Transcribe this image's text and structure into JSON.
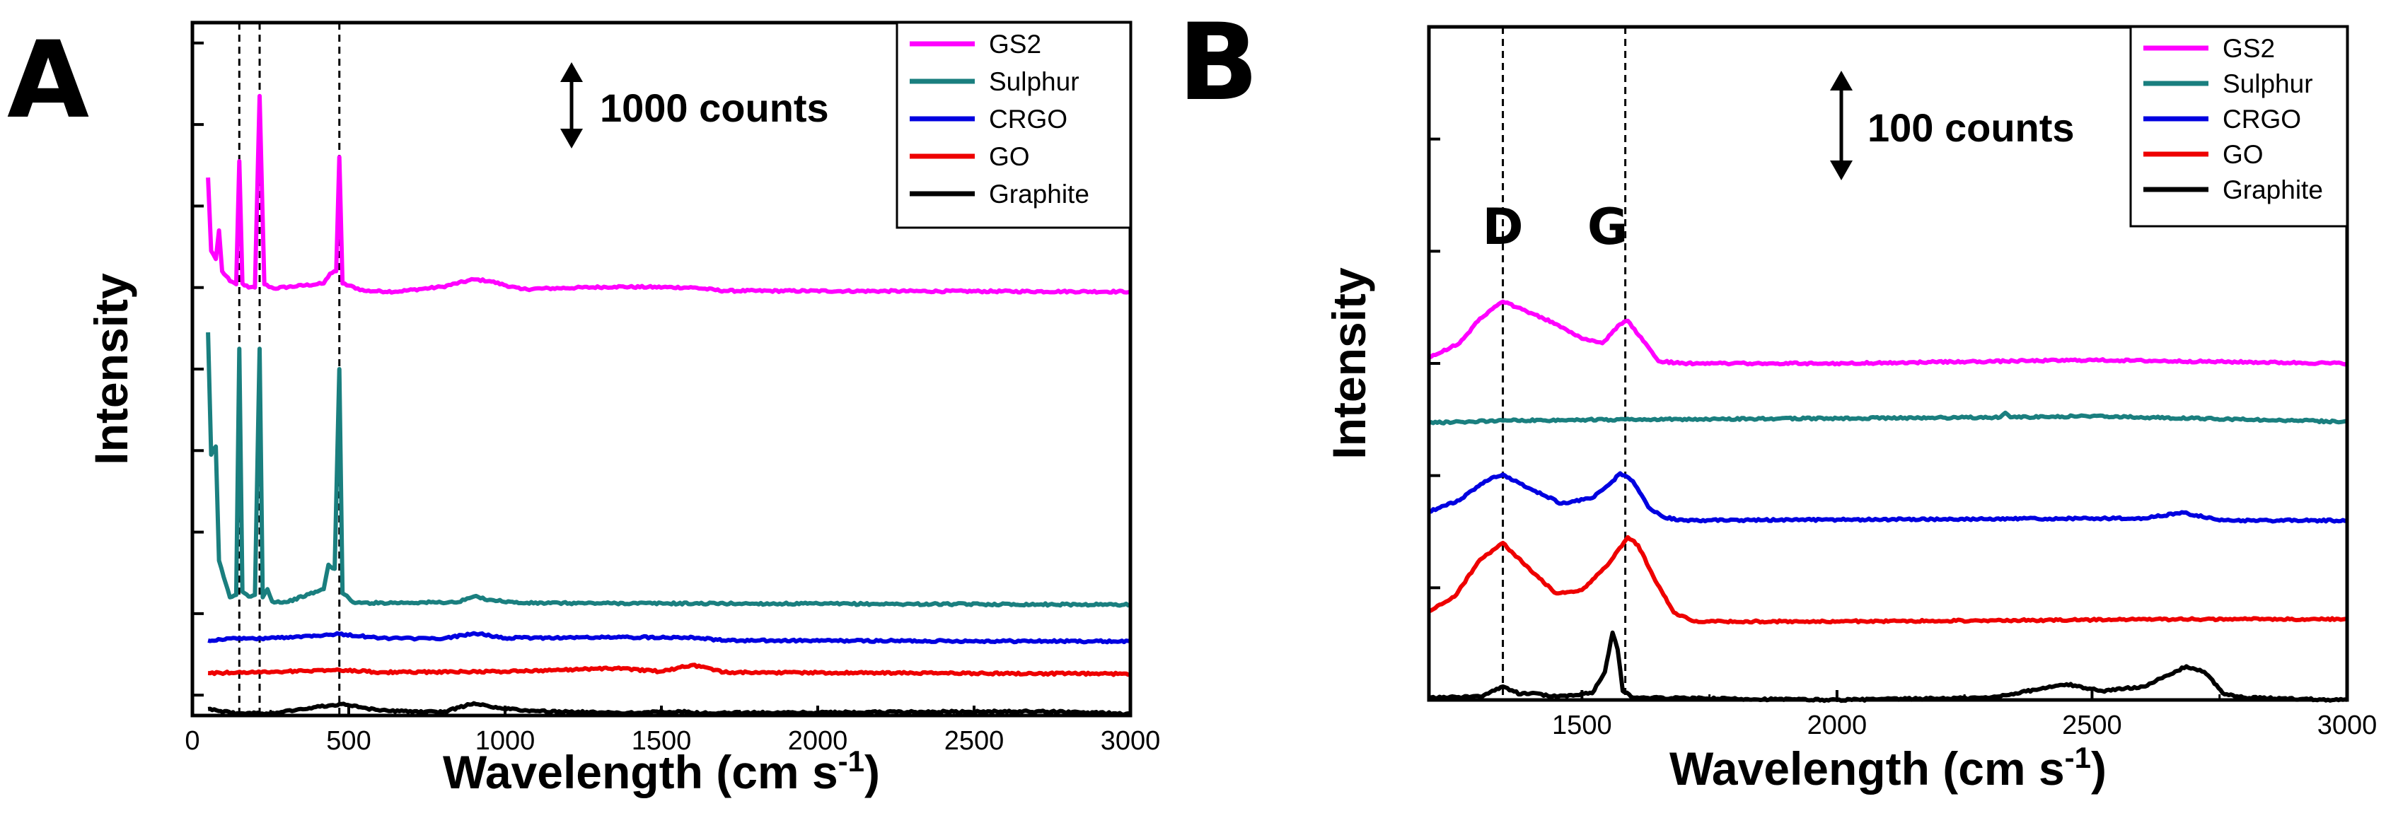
{
  "colors": {
    "GS2": "#ff00ff",
    "Sulphur": "#1a7f7f",
    "CRGO": "#0000e0",
    "GO": "#ee0000",
    "Graphite": "#000000"
  },
  "chart_data": [
    {
      "type": "line",
      "panel_label": "A",
      "xlabel": "Wavelength (cm s",
      "xlabel_sup": "-1",
      "xlabel_close": ")",
      "ylabel": "Intensity",
      "xlim": [
        0,
        3000
      ],
      "x_ticks": [
        0,
        500,
        1000,
        1500,
        2000,
        2500,
        3000
      ],
      "y_units": "counts",
      "ylim": [
        0,
        8500
      ],
      "y_minor_ticks": [
        250,
        1250,
        2250,
        3250,
        4250,
        5250,
        6250,
        7250,
        8250
      ],
      "scale_bar": {
        "text": "1000 counts",
        "value": 1000
      },
      "reference_lines_x": [
        150,
        215,
        470
      ],
      "legend": [
        "GS2",
        "Sulphur",
        "CRGO",
        "GO",
        "Graphite"
      ],
      "series": [
        {
          "name": "GS2",
          "baseline": 5200,
          "points": [
            [
              50,
              6600
            ],
            [
              60,
              5700
            ],
            [
              75,
              5600
            ],
            [
              85,
              5950
            ],
            [
              95,
              5450
            ],
            [
              120,
              5330
            ],
            [
              140,
              5290
            ],
            [
              150,
              6800
            ],
            [
              160,
              5300
            ],
            [
              180,
              5250
            ],
            [
              200,
              5250
            ],
            [
              215,
              7600
            ],
            [
              230,
              5290
            ],
            [
              260,
              5240
            ],
            [
              420,
              5300
            ],
            [
              440,
              5420
            ],
            [
              460,
              5450
            ],
            [
              470,
              6850
            ],
            [
              480,
              5300
            ],
            [
              550,
              5210
            ],
            [
              650,
              5200
            ],
            [
              800,
              5260
            ],
            [
              900,
              5350
            ],
            [
              950,
              5330
            ],
            [
              1050,
              5230
            ],
            [
              1350,
              5260
            ],
            [
              1600,
              5250
            ],
            [
              1700,
              5210
            ],
            [
              3000,
              5200
            ]
          ]
        },
        {
          "name": "Sulphur",
          "baseline": 1350,
          "points": [
            [
              50,
              4700
            ],
            [
              60,
              3200
            ],
            [
              75,
              3300
            ],
            [
              85,
              1900
            ],
            [
              100,
              1700
            ],
            [
              120,
              1450
            ],
            [
              140,
              1480
            ],
            [
              150,
              4500
            ],
            [
              160,
              1520
            ],
            [
              180,
              1460
            ],
            [
              200,
              1480
            ],
            [
              215,
              4500
            ],
            [
              225,
              1450
            ],
            [
              240,
              1550
            ],
            [
              255,
              1400
            ],
            [
              300,
              1390
            ],
            [
              420,
              1550
            ],
            [
              435,
              1850
            ],
            [
              455,
              1800
            ],
            [
              470,
              4250
            ],
            [
              480,
              1500
            ],
            [
              520,
              1380
            ],
            [
              850,
              1390
            ],
            [
              900,
              1460
            ],
            [
              950,
              1420
            ],
            [
              1050,
              1380
            ],
            [
              3000,
              1360
            ]
          ]
        },
        {
          "name": "CRGO",
          "baseline": 900,
          "points": [
            [
              50,
              920
            ],
            [
              150,
              950
            ],
            [
              200,
              940
            ],
            [
              300,
              960
            ],
            [
              470,
              1000
            ],
            [
              600,
              950
            ],
            [
              800,
              940
            ],
            [
              900,
              1010
            ],
            [
              1000,
              950
            ],
            [
              1350,
              960
            ],
            [
              1600,
              960
            ],
            [
              1700,
              920
            ],
            [
              3000,
              910
            ]
          ]
        },
        {
          "name": "GO",
          "baseline": 500,
          "points": [
            [
              50,
              520
            ],
            [
              300,
              540
            ],
            [
              470,
              560
            ],
            [
              600,
              530
            ],
            [
              1000,
              540
            ],
            [
              1350,
              580
            ],
            [
              1500,
              540
            ],
            [
              1600,
              620
            ],
            [
              1700,
              530
            ],
            [
              3000,
              510
            ]
          ]
        },
        {
          "name": "Graphite",
          "baseline": 20,
          "points": [
            [
              50,
              80
            ],
            [
              150,
              20
            ],
            [
              250,
              30
            ],
            [
              470,
              140
            ],
            [
              600,
              60
            ],
            [
              800,
              40
            ],
            [
              900,
              150
            ],
            [
              950,
              110
            ],
            [
              1050,
              60
            ],
            [
              1350,
              30
            ],
            [
              1560,
              50
            ],
            [
              1600,
              30
            ],
            [
              2700,
              50
            ],
            [
              3000,
              20
            ]
          ]
        }
      ]
    },
    {
      "type": "line",
      "panel_label": "B",
      "xlabel": "Wavelength (cm s",
      "xlabel_sup": "-1",
      "xlabel_close": ")",
      "ylabel": "Intensity",
      "xlim": [
        1200,
        3000
      ],
      "x_ticks": [
        1500,
        2000,
        2500,
        3000
      ],
      "y_units": "counts",
      "ylim": [
        0,
        600
      ],
      "y_minor_ticks": [
        0,
        100,
        200,
        300,
        400,
        500,
        600
      ],
      "scale_bar": {
        "text": "100 counts",
        "value": 100
      },
      "reference_lines_x": [
        1345,
        1585
      ],
      "peak_labels": [
        {
          "text": "D",
          "x": 1345
        },
        {
          "text": "G",
          "x": 1585
        }
      ],
      "legend": [
        "GS2",
        "Sulphur",
        "CRGO",
        "GO",
        "Graphite"
      ],
      "series": [
        {
          "name": "GS2",
          "baseline": 300,
          "points": [
            [
              1200,
              305
            ],
            [
              1260,
              318
            ],
            [
              1300,
              340
            ],
            [
              1345,
              355
            ],
            [
              1400,
              345
            ],
            [
              1450,
              335
            ],
            [
              1500,
              322
            ],
            [
              1540,
              318
            ],
            [
              1575,
              335
            ],
            [
              1590,
              338
            ],
            [
              1620,
              320
            ],
            [
              1650,
              302
            ],
            [
              1700,
              300
            ],
            [
              2000,
              300
            ],
            [
              2500,
              303
            ],
            [
              3000,
              300
            ]
          ]
        },
        {
          "name": "Sulphur",
          "baseline": 247,
          "points": [
            [
              1200,
              247
            ],
            [
              1345,
              249
            ],
            [
              1585,
              250
            ],
            [
              2000,
              251
            ],
            [
              2320,
              252
            ],
            [
              2330,
              256
            ],
            [
              2340,
              252
            ],
            [
              2500,
              253
            ],
            [
              2700,
              251
            ],
            [
              3000,
              248
            ]
          ]
        },
        {
          "name": "CRGO",
          "baseline": 160,
          "points": [
            [
              1200,
              168
            ],
            [
              1260,
              178
            ],
            [
              1310,
              195
            ],
            [
              1345,
              201
            ],
            [
              1400,
              188
            ],
            [
              1460,
              175
            ],
            [
              1520,
              180
            ],
            [
              1560,
              195
            ],
            [
              1575,
              202
            ],
            [
              1600,
              195
            ],
            [
              1630,
              172
            ],
            [
              1660,
              163
            ],
            [
              1700,
              160
            ],
            [
              2600,
              162
            ],
            [
              2680,
              167
            ],
            [
              2750,
              160
            ],
            [
              3000,
              160
            ]
          ]
        },
        {
          "name": "GO",
          "baseline": 70,
          "points": [
            [
              1200,
              79
            ],
            [
              1250,
              92
            ],
            [
              1300,
              125
            ],
            [
              1345,
              140
            ],
            [
              1400,
              115
            ],
            [
              1450,
              95
            ],
            [
              1500,
              98
            ],
            [
              1550,
              120
            ],
            [
              1590,
              145
            ],
            [
              1610,
              138
            ],
            [
              1640,
              110
            ],
            [
              1680,
              78
            ],
            [
              1720,
              70
            ],
            [
              2000,
              70
            ],
            [
              2700,
              72
            ],
            [
              3000,
              72
            ]
          ]
        },
        {
          "name": "Graphite",
          "baseline": 0,
          "points": [
            [
              1200,
              2
            ],
            [
              1300,
              3
            ],
            [
              1345,
              12
            ],
            [
              1380,
              5
            ],
            [
              1400,
              6
            ],
            [
              1450,
              3
            ],
            [
              1520,
              6
            ],
            [
              1545,
              25
            ],
            [
              1560,
              60
            ],
            [
              1570,
              45
            ],
            [
              1580,
              8
            ],
            [
              1600,
              2
            ],
            [
              2000,
              0
            ],
            [
              2300,
              2
            ],
            [
              2400,
              10
            ],
            [
              2450,
              14
            ],
            [
              2520,
              8
            ],
            [
              2600,
              12
            ],
            [
              2650,
              22
            ],
            [
              2685,
              30
            ],
            [
              2720,
              25
            ],
            [
              2760,
              5
            ],
            [
              2800,
              2
            ],
            [
              3000,
              0
            ]
          ]
        }
      ]
    }
  ]
}
